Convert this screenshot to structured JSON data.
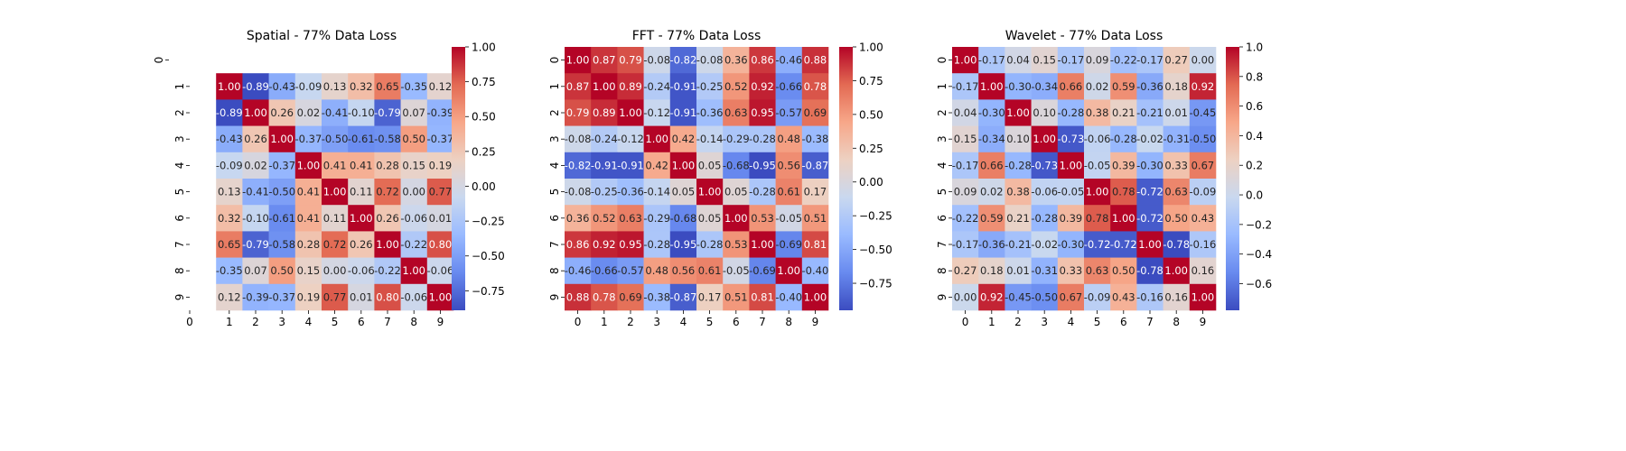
{
  "colors": {
    "cmap": [
      "#3b4cc0",
      "#688aef",
      "#99baff",
      "#c9d8ef",
      "#edd1c2",
      "#f7a789",
      "#e36a53",
      "#b40426"
    ],
    "text_light": "#ffffff",
    "text_dark": "#262626",
    "axis": "#000000",
    "background": "#ffffff"
  },
  "chart_data": [
    {
      "type": "heatmap",
      "title": "Spatial - 77% Data Loss",
      "xlabel": "",
      "ylabel": "",
      "x_categories": [
        "0",
        "1",
        "2",
        "3",
        "4",
        "5",
        "6",
        "7",
        "8",
        "9"
      ],
      "y_categories": [
        "0",
        "1",
        "2",
        "3",
        "4",
        "5",
        "6",
        "7",
        "8",
        "9"
      ],
      "missing": [
        0
      ],
      "values": [
        [
          null,
          null,
          null,
          null,
          null,
          null,
          null,
          null,
          null,
          null
        ],
        [
          null,
          1.0,
          -0.89,
          -0.43,
          -0.09,
          0.13,
          0.32,
          0.65,
          -0.35,
          0.12
        ],
        [
          null,
          -0.89,
          1.0,
          0.26,
          0.02,
          -0.41,
          -0.1,
          -0.79,
          0.07,
          -0.39
        ],
        [
          null,
          -0.43,
          0.26,
          1.0,
          -0.37,
          -0.5,
          -0.61,
          -0.58,
          0.5,
          -0.37
        ],
        [
          null,
          -0.09,
          0.02,
          -0.37,
          1.0,
          0.41,
          0.41,
          0.28,
          0.15,
          0.19
        ],
        [
          null,
          0.13,
          -0.41,
          -0.5,
          0.41,
          1.0,
          0.11,
          0.72,
          0.0,
          0.77
        ],
        [
          null,
          0.32,
          -0.1,
          -0.61,
          0.41,
          0.11,
          1.0,
          0.26,
          -0.06,
          0.01
        ],
        [
          null,
          0.65,
          -0.79,
          -0.58,
          0.28,
          0.72,
          0.26,
          1.0,
          -0.22,
          0.8
        ],
        [
          null,
          -0.35,
          0.07,
          0.5,
          0.15,
          0.0,
          -0.06,
          -0.22,
          1.0,
          -0.06
        ],
        [
          null,
          0.12,
          -0.39,
          -0.37,
          0.19,
          0.77,
          0.01,
          0.8,
          -0.06,
          1.0
        ]
      ],
      "vmin": -0.89,
      "vmax": 1.0,
      "colorbar_ticks": [
        1.0,
        0.75,
        0.5,
        0.25,
        0.0,
        -0.25,
        -0.5,
        -0.75
      ],
      "colorbar_tick_labels": [
        "1.00",
        "0.75",
        "0.50",
        "0.25",
        "0.00",
        "−0.25",
        "−0.50",
        "−0.75"
      ]
    },
    {
      "type": "heatmap",
      "title": "FFT - 77% Data Loss",
      "xlabel": "",
      "ylabel": "",
      "x_categories": [
        "0",
        "1",
        "2",
        "3",
        "4",
        "5",
        "6",
        "7",
        "8",
        "9"
      ],
      "y_categories": [
        "0",
        "1",
        "2",
        "3",
        "4",
        "5",
        "6",
        "7",
        "8",
        "9"
      ],
      "values": [
        [
          1.0,
          0.87,
          0.79,
          -0.08,
          -0.82,
          -0.08,
          0.36,
          0.86,
          -0.46,
          0.88
        ],
        [
          0.87,
          1.0,
          0.89,
          -0.24,
          -0.91,
          -0.25,
          0.52,
          0.92,
          -0.66,
          0.78
        ],
        [
          0.79,
          0.89,
          1.0,
          -0.12,
          -0.91,
          -0.36,
          0.63,
          0.95,
          -0.57,
          0.69
        ],
        [
          -0.08,
          -0.24,
          -0.12,
          1.0,
          0.42,
          -0.14,
          -0.29,
          -0.28,
          0.48,
          -0.38
        ],
        [
          -0.82,
          -0.91,
          -0.91,
          0.42,
          1.0,
          0.05,
          -0.68,
          -0.95,
          0.56,
          -0.87
        ],
        [
          -0.08,
          -0.25,
          -0.36,
          -0.14,
          0.05,
          1.0,
          0.05,
          -0.28,
          0.61,
          0.17
        ],
        [
          0.36,
          0.52,
          0.63,
          -0.29,
          -0.68,
          0.05,
          1.0,
          0.53,
          -0.05,
          0.51
        ],
        [
          0.86,
          0.92,
          0.95,
          -0.28,
          -0.95,
          -0.28,
          0.53,
          1.0,
          -0.69,
          0.81
        ],
        [
          -0.46,
          -0.66,
          -0.57,
          0.48,
          0.56,
          0.61,
          -0.05,
          -0.69,
          1.0,
          -0.4
        ],
        [
          0.88,
          0.78,
          0.69,
          -0.38,
          -0.87,
          0.17,
          0.51,
          0.81,
          -0.4,
          1.0
        ]
      ],
      "vmin": -0.95,
      "vmax": 1.0,
      "colorbar_ticks": [
        1.0,
        0.75,
        0.5,
        0.25,
        0.0,
        -0.25,
        -0.5,
        -0.75
      ],
      "colorbar_tick_labels": [
        "1.00",
        "0.75",
        "0.50",
        "0.25",
        "0.00",
        "−0.25",
        "−0.50",
        "−0.75"
      ]
    },
    {
      "type": "heatmap",
      "title": "Wavelet - 77% Data Loss",
      "xlabel": "",
      "ylabel": "",
      "x_categories": [
        "0",
        "1",
        "2",
        "3",
        "4",
        "5",
        "6",
        "7",
        "8",
        "9"
      ],
      "y_categories": [
        "0",
        "1",
        "2",
        "3",
        "4",
        "5",
        "6",
        "7",
        "8",
        "9"
      ],
      "values": [
        [
          1.0,
          -0.17,
          0.04,
          0.15,
          -0.17,
          0.09,
          -0.22,
          -0.17,
          0.27,
          0.0
        ],
        [
          -0.17,
          1.0,
          -0.3,
          -0.34,
          0.66,
          0.02,
          0.59,
          -0.36,
          0.18,
          0.92
        ],
        [
          0.04,
          -0.3,
          1.0,
          0.1,
          -0.28,
          0.38,
          0.21,
          -0.21,
          0.01,
          -0.45
        ],
        [
          0.15,
          -0.34,
          0.1,
          1.0,
          -0.73,
          -0.06,
          -0.28,
          -0.02,
          -0.31,
          -0.5
        ],
        [
          -0.17,
          0.66,
          -0.28,
          -0.73,
          1.0,
          -0.05,
          0.39,
          -0.3,
          0.33,
          0.67
        ],
        [
          0.09,
          0.02,
          0.38,
          -0.06,
          -0.05,
          1.0,
          0.78,
          -0.72,
          0.63,
          -0.09
        ],
        [
          -0.22,
          0.59,
          0.21,
          -0.28,
          0.39,
          0.78,
          1.0,
          -0.72,
          0.5,
          0.43
        ],
        [
          -0.17,
          -0.36,
          -0.21,
          -0.02,
          -0.3,
          -0.72,
          -0.72,
          1.0,
          -0.78,
          -0.16
        ],
        [
          0.27,
          0.18,
          0.01,
          -0.31,
          0.33,
          0.63,
          0.5,
          -0.78,
          1.0,
          0.16
        ],
        [
          0.0,
          0.92,
          -0.45,
          -0.5,
          0.67,
          -0.09,
          0.43,
          -0.16,
          0.16,
          1.0
        ]
      ],
      "vmin": -0.78,
      "vmax": 1.0,
      "colorbar_ticks": [
        1.0,
        0.8,
        0.6,
        0.4,
        0.2,
        0.0,
        -0.2,
        -0.4,
        -0.6
      ],
      "colorbar_tick_labels": [
        "1.0",
        "0.8",
        "0.6",
        "0.4",
        "0.2",
        "0.0",
        "−0.2",
        "−0.4",
        "−0.6"
      ]
    }
  ]
}
